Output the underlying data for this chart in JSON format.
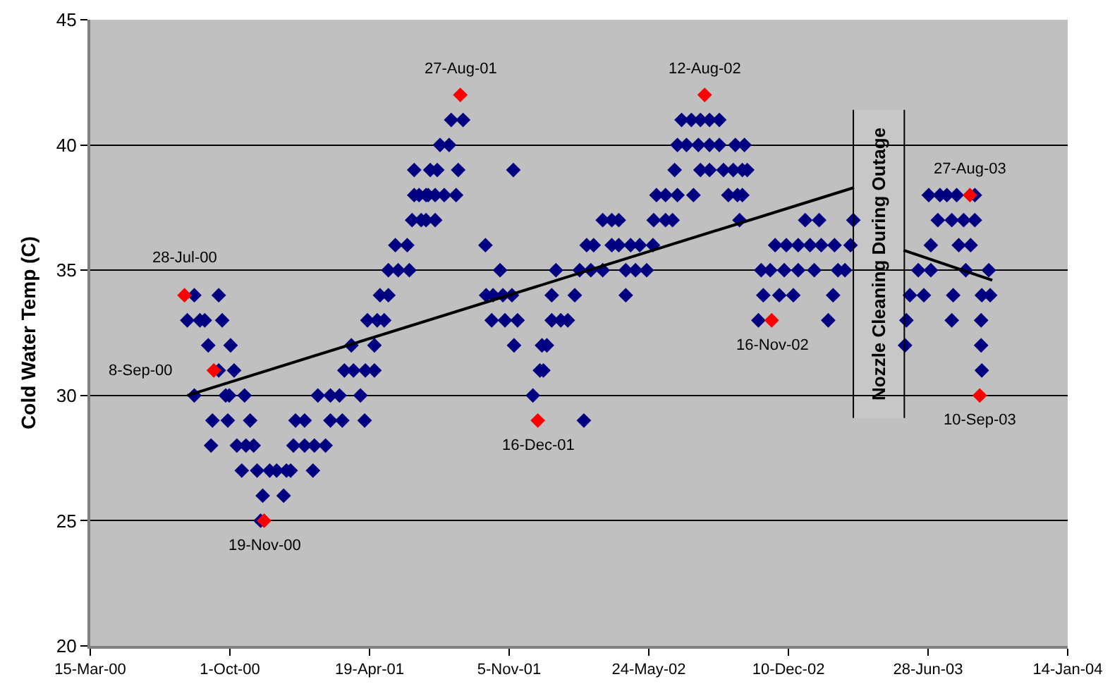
{
  "chart_data": {
    "type": "scatter",
    "ylabel": "Cold Water Temp (C)",
    "xlim": [
      "2000-03-15",
      "2004-01-14"
    ],
    "xticks": [
      {
        "value": "2000-03-15",
        "label": "15-Mar-00"
      },
      {
        "value": "2000-10-01",
        "label": "1-Oct-00"
      },
      {
        "value": "2001-04-19",
        "label": "19-Apr-01"
      },
      {
        "value": "2001-11-05",
        "label": "5-Nov-01"
      },
      {
        "value": "2002-05-24",
        "label": "24-May-02"
      },
      {
        "value": "2002-12-10",
        "label": "10-Dec-02"
      },
      {
        "value": "2003-06-28",
        "label": "28-Jun-03"
      },
      {
        "value": "2004-01-14",
        "label": "14-Jan-04"
      }
    ],
    "ylim": [
      20,
      45
    ],
    "yticks": [
      20,
      25,
      30,
      35,
      40,
      45
    ],
    "grid": "y",
    "marker": "diamond",
    "series": [
      {
        "color": "#000080",
        "x": [
          "2000-08-11",
          "2000-09-15",
          "2000-08-01",
          "2000-08-19",
          "2000-08-26",
          "2000-09-20",
          "2000-08-31",
          "2000-10-02",
          "2000-09-15",
          "2000-10-07",
          "2000-08-11",
          "2000-09-25",
          "2000-09-30",
          "2000-10-22",
          "2001-02-04",
          "2001-02-22",
          "2001-03-07",
          "2001-04-06",
          "2000-09-06",
          "2000-09-28",
          "2000-10-30",
          "2001-01-03",
          "2001-01-16",
          "2001-02-22",
          "2001-03-11",
          "2001-04-12",
          "2000-09-04",
          "2000-10-11",
          "2000-10-24",
          "2000-11-04",
          "2000-12-31",
          "2001-01-16",
          "2001-01-30",
          "2001-02-15",
          "2000-10-18",
          "2000-11-09",
          "2000-11-27",
          "2000-12-07",
          "2000-12-21",
          "2000-12-27",
          "2001-01-28",
          "2000-11-17",
          "2000-12-17",
          "2000-11-14",
          "2001-03-14",
          "2001-03-27",
          "2001-04-13",
          "2001-04-26",
          "2001-03-24",
          "2001-04-26",
          "2001-04-16",
          "2001-04-30",
          "2001-05-10",
          "2001-05-04",
          "2001-05-16",
          "2001-05-16",
          "2001-05-30",
          "2001-06-15",
          "2001-05-26",
          "2001-06-12",
          "2001-06-19",
          "2001-07-09",
          "2001-07-22",
          "2001-07-02",
          "2001-06-22",
          "2001-07-09",
          "2001-06-29",
          "2001-07-12",
          "2001-07-22",
          "2001-08-04",
          "2001-08-21",
          "2001-06-22",
          "2001-07-15",
          "2001-07-25",
          "2001-08-24",
          "2001-11-11",
          "2001-07-29",
          "2001-08-11",
          "2001-08-14",
          "2001-08-31",
          "2001-10-02",
          "2001-10-23",
          "2002-01-11",
          "2001-10-03",
          "2001-10-13",
          "2001-10-27",
          "2001-11-09",
          "2002-01-05",
          "2002-02-07",
          "2001-10-11",
          "2001-10-30",
          "2001-11-17",
          "2002-01-05",
          "2002-01-18",
          "2002-01-28",
          "2001-11-12",
          "2001-12-22",
          "2001-12-29",
          "2001-12-19",
          "2001-12-24",
          "2001-12-09",
          "2002-02-20",
          "2002-02-14",
          "2002-03-02",
          "2002-03-19",
          "2002-04-21",
          "2002-05-05",
          "2002-05-21",
          "2002-02-24",
          "2002-03-06",
          "2002-04-01",
          "2002-04-11",
          "2002-04-28",
          "2002-05-11",
          "2002-05-30",
          "2002-04-21",
          "2002-03-19",
          "2002-04-01",
          "2002-04-11",
          "2002-05-31",
          "2002-06-17",
          "2002-06-27",
          "2002-10-01",
          "2002-06-04",
          "2002-06-17",
          "2002-07-04",
          "2002-07-27",
          "2002-09-15",
          "2002-09-28",
          "2002-10-05",
          "2002-06-30",
          "2002-08-06",
          "2002-08-19",
          "2002-09-08",
          "2002-09-22",
          "2002-10-05",
          "2002-10-12",
          "2002-07-04",
          "2002-07-17",
          "2002-08-03",
          "2002-08-19",
          "2002-09-02",
          "2002-09-25",
          "2002-10-08",
          "2002-07-10",
          "2002-07-24",
          "2002-08-06",
          "2002-08-19",
          "2002-09-02",
          "2002-11-21",
          "2002-12-07",
          "2002-12-24",
          "2003-01-10",
          "2003-01-26",
          "2003-02-14",
          "2003-03-09",
          "2003-01-03",
          "2003-01-23",
          "2003-03-13",
          "2002-11-01",
          "2002-11-14",
          "2002-12-04",
          "2002-12-24",
          "2003-01-16",
          "2003-02-19",
          "2003-03-01",
          "2002-11-04",
          "2002-11-27",
          "2002-12-17",
          "2003-02-12",
          "2002-10-28",
          "2003-02-05",
          "2003-06-29",
          "2003-07-15",
          "2003-07-25",
          "2003-08-08",
          "2003-09-03",
          "2003-07-12",
          "2003-08-01",
          "2003-08-18",
          "2003-09-03",
          "2003-07-02",
          "2003-08-11",
          "2003-08-28",
          "2003-06-14",
          "2003-07-02",
          "2003-08-21",
          "2003-09-23",
          "2003-06-02",
          "2003-06-22",
          "2003-08-03",
          "2003-09-13",
          "2003-09-25",
          "2003-05-28",
          "2003-08-01",
          "2003-09-12",
          "2003-05-26",
          "2003-09-12",
          "2003-09-13"
        ],
        "values": [
          34,
          34,
          33,
          33,
          33,
          33,
          32,
          32,
          31,
          31,
          30,
          30,
          30,
          30,
          30,
          30,
          30,
          30,
          29,
          29,
          29,
          29,
          29,
          29,
          29,
          29,
          28,
          28,
          28,
          28,
          28,
          28,
          28,
          28,
          27,
          27,
          27,
          27,
          27,
          27,
          27,
          26,
          26,
          25,
          31,
          31,
          31,
          31,
          32,
          32,
          33,
          33,
          33,
          34,
          34,
          35,
          35,
          35,
          36,
          36,
          37,
          37,
          37,
          37,
          38,
          38,
          38,
          38,
          38,
          38,
          38,
          39,
          39,
          39,
          39,
          39,
          40,
          40,
          41,
          41,
          36,
          35,
          35,
          34,
          34,
          34,
          34,
          34,
          34,
          33,
          33,
          33,
          33,
          33,
          33,
          32,
          32,
          32,
          31,
          31,
          30,
          29,
          35,
          35,
          35,
          35,
          35,
          35,
          36,
          36,
          36,
          36,
          36,
          36,
          36,
          34,
          37,
          37,
          37,
          37,
          37,
          37,
          37,
          38,
          38,
          38,
          38,
          38,
          38,
          38,
          39,
          39,
          39,
          39,
          39,
          39,
          39,
          40,
          40,
          40,
          40,
          40,
          40,
          40,
          41,
          41,
          41,
          41,
          41,
          36,
          36,
          36,
          36,
          36,
          36,
          36,
          37,
          37,
          37,
          35,
          35,
          35,
          35,
          35,
          35,
          35,
          34,
          34,
          34,
          34,
          33,
          33,
          38,
          38,
          38,
          38,
          38,
          37,
          37,
          37,
          37,
          36,
          36,
          36,
          35,
          35,
          35,
          35,
          34,
          34,
          34,
          34,
          34,
          33,
          33,
          33,
          32,
          32,
          31
        ]
      },
      {
        "color": "#ff0000",
        "x": [
          "2000-07-28",
          "2000-09-08",
          "2000-11-19",
          "2001-08-27",
          "2001-12-16",
          "2002-08-12",
          "2002-11-16",
          "2003-08-27",
          "2003-09-10"
        ],
        "values": [
          34,
          31,
          25,
          42,
          29,
          42,
          33,
          38,
          30
        ]
      },
      {
        "type": "line",
        "color": "#000000",
        "marker": "none",
        "x": [
          "2000-08-01",
          "2003-03-14"
        ],
        "values": [
          30,
          38.3
        ]
      },
      {
        "type": "line",
        "color": "#000000",
        "marker": "none",
        "x": [
          "2003-05-24",
          "2003-09-28"
        ],
        "values": [
          35.8,
          34.6
        ]
      }
    ],
    "bands": [
      {
        "axis": "x",
        "from": "2003-03-13",
        "to": "2003-05-25",
        "label": "Nozzle Cleaning During Outage"
      }
    ],
    "annotations": [
      {
        "text": "28-Jul-00",
        "x": "2000-07-28",
        "y": 34
      },
      {
        "text": "8-Sep-00",
        "x": "2000-09-08",
        "y": 31
      },
      {
        "text": "19-Nov-00",
        "x": "2000-11-19",
        "y": 25
      },
      {
        "text": "27-Aug-01",
        "x": "2001-08-27",
        "y": 42
      },
      {
        "text": "16-Dec-01",
        "x": "2001-12-16",
        "y": 29
      },
      {
        "text": "12-Aug-02",
        "x": "2002-08-12",
        "y": 42
      },
      {
        "text": "16-Nov-02",
        "x": "2002-11-16",
        "y": 33
      },
      {
        "text": "27-Aug-03",
        "x": "2003-08-27",
        "y": 38
      },
      {
        "text": "10-Sep-03",
        "x": "2003-09-10",
        "y": 30
      }
    ]
  }
}
